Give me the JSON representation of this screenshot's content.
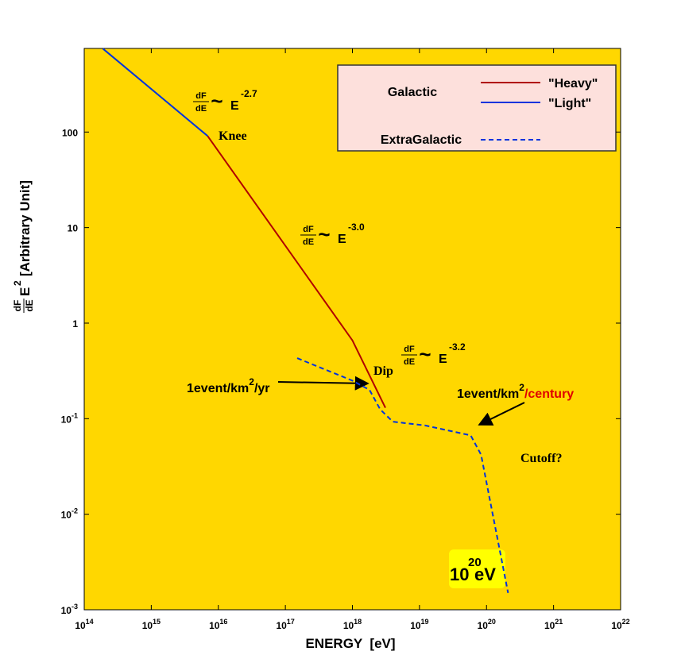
{
  "chart_data": {
    "type": "line",
    "xscale": "log",
    "yscale": "log",
    "xlabel": "ENERGY  [eV]",
    "ylabel": {
      "numerator": "dF",
      "denominator": "dE",
      "base": "E",
      "exponent": "2",
      "text": "[Arbitrary Unit]"
    },
    "xlim": [
      100000000000000.0,
      1e+22
    ],
    "ylim": [
      0.001,
      750
    ],
    "xticks": [
      {
        "value": 100000000000000.0,
        "label": "10^14"
      },
      {
        "value": 1000000000000000.0,
        "label": "10^15"
      },
      {
        "value": 1e+16,
        "label": "10^16"
      },
      {
        "value": 1e+17,
        "label": "10^17"
      },
      {
        "value": 1e+18,
        "label": "10^18"
      },
      {
        "value": 1e+19,
        "label": "10^19"
      },
      {
        "value": 1e+20,
        "label": "10^20"
      },
      {
        "value": 1e+21,
        "label": "10^21"
      },
      {
        "value": 1e+22,
        "label": "10^22"
      }
    ],
    "yticks": [
      {
        "value": 0.001,
        "label": "10^-3"
      },
      {
        "value": 0.01,
        "label": "10^-2"
      },
      {
        "value": 0.1,
        "label": "10^-1"
      },
      1,
      10,
      100
    ],
    "background": "#ffd700",
    "legend_groups": [
      "Galactic",
      "ExtraGalactic"
    ],
    "series": [
      {
        "name": "\"Heavy\"",
        "group": "Galactic",
        "color": "#b00000",
        "dash": false,
        "x": [
          6900000000000000.0,
          1e+18,
          3.1e+18
        ],
        "values": [
          91,
          0.66,
          0.13
        ]
      },
      {
        "name": "\"Light\"",
        "group": "Galactic",
        "color": "#0033dd",
        "dash": false,
        "x": [
          190000000000000.0,
          6900000000000000.0
        ],
        "values": [
          745,
          91
        ]
      },
      {
        "name": "",
        "group": "ExtraGalactic",
        "color": "#0033dd",
        "dash": true,
        "x": [
          1.5e+17,
          1e+18,
          1.8e+18,
          2.6e+18,
          4e+18,
          1.2e+19,
          5.8e+19,
          8.3e+19,
          2.1e+20
        ],
        "values": [
          0.43,
          0.25,
          0.2,
          0.125,
          0.093,
          0.085,
          0.067,
          0.042,
          0.0015
        ]
      }
    ],
    "slope_labels": [
      {
        "numerator": "dF",
        "denominator": "dE",
        "symbol": "~",
        "base": "E",
        "exponent": "-2.7"
      },
      {
        "numerator": "dF",
        "denominator": "dE",
        "symbol": "~",
        "base": "E",
        "exponent": "-3.0"
      },
      {
        "numerator": "dF",
        "denominator": "dE",
        "symbol": "~",
        "base": "E",
        "exponent": "-3.2"
      }
    ],
    "annotations": [
      "Knee",
      "Dip",
      "Cutoff?"
    ],
    "rate_labels": [
      {
        "text": "1event/km",
        "superscript": "2",
        "suffix": "/yr",
        "suffix_color": "#000000"
      },
      {
        "text": "1event/km",
        "superscript": "2",
        "suffix": "/century",
        "suffix_color": "#e00000"
      }
    ],
    "energy_box": {
      "base": "10",
      "exponent": "20",
      "unit": "eV",
      "color": "#e00000",
      "fill": "#ffff00"
    }
  }
}
